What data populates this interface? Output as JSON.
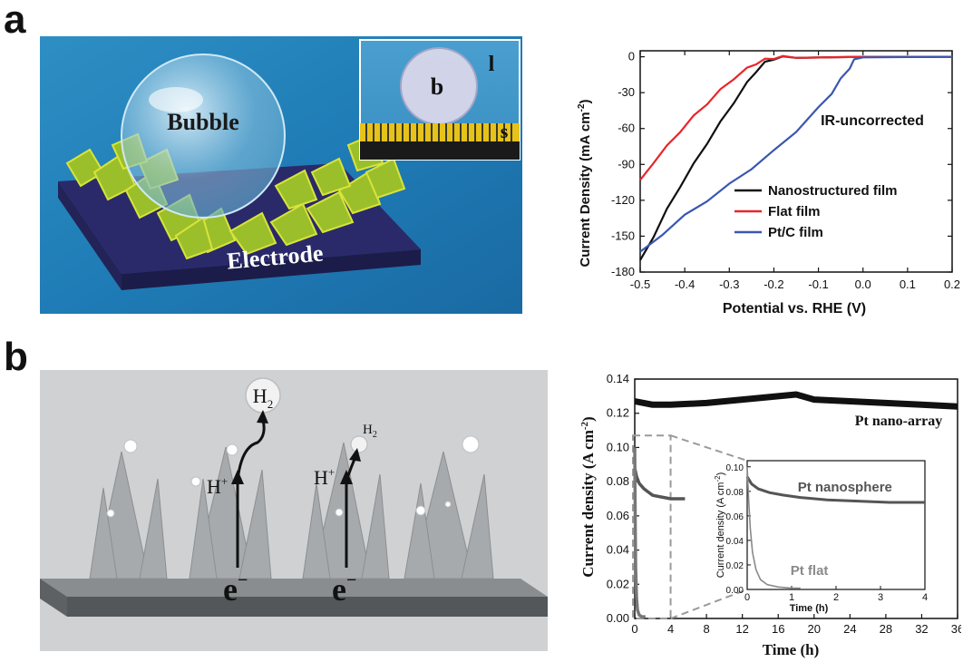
{
  "panels": {
    "a": {
      "letter": "a",
      "illustration": {
        "bubble_label": "Bubble",
        "electrode_label": "Electrode",
        "inset_b": "b",
        "inset_l": "l",
        "inset_s": "s"
      }
    },
    "b": {
      "letter": "b",
      "illustration": {
        "h2_big": "H",
        "h2_big_sub": "2",
        "h2_small": "H",
        "h2_small_sub": "2",
        "hplus": "H",
        "hplus_sup": "+",
        "e_minus": "e",
        "e_minus_sup": "−"
      }
    }
  },
  "colors": {
    "black": "#111111",
    "red": "#e8262a",
    "blue": "#3a57b0",
    "gray_trace": "#555555",
    "dash_gray": "#9a9a9a"
  },
  "chart_data": [
    {
      "type": "line",
      "title": "",
      "xlabel": "Potential vs. RHE (V)",
      "ylabel": "Current Density (mA cm",
      "ylabel_sup": "-2",
      "ylabel_end": ")",
      "xlim": [
        -0.5,
        0.2
      ],
      "ylim": [
        -180,
        5
      ],
      "xticks": [
        "-0.5",
        "-0.4",
        "-0.3",
        "-0.2",
        "-0.1",
        "0.0",
        "0.1",
        "0.2"
      ],
      "yticks": [
        "0",
        "-30",
        "-60",
        "-90",
        "-120",
        "-150",
        "-180"
      ],
      "annotation": "IR-uncorrected",
      "legend_position": "bottom-right",
      "series": [
        {
          "name": "Nanostructured film",
          "color": "#111111",
          "x": [
            -0.5,
            -0.47,
            -0.44,
            -0.41,
            -0.38,
            -0.35,
            -0.32,
            -0.29,
            -0.26,
            -0.24,
            -0.22,
            -0.2,
            -0.18,
            -0.15,
            0.0,
            0.2
          ],
          "y": [
            -170,
            -150,
            -128,
            -108,
            -90,
            -72,
            -55,
            -38,
            -22,
            -12,
            -5,
            -1.5,
            -0.5,
            0,
            0,
            0
          ]
        },
        {
          "name": "Flat film",
          "color": "#e8262a",
          "x": [
            -0.5,
            -0.47,
            -0.44,
            -0.41,
            -0.38,
            -0.35,
            -0.32,
            -0.29,
            -0.26,
            -0.24,
            -0.22,
            -0.2,
            -0.18,
            -0.15,
            0.0,
            0.2
          ],
          "y": [
            -103,
            -88,
            -75,
            -62,
            -50,
            -39,
            -28,
            -18,
            -10,
            -5.5,
            -2.5,
            -1,
            -0.3,
            0,
            0,
            0
          ]
        },
        {
          "name": "Pt/C film",
          "color": "#3a57b0",
          "x": [
            -0.5,
            -0.45,
            -0.4,
            -0.35,
            -0.3,
            -0.25,
            -0.2,
            -0.15,
            -0.1,
            -0.07,
            -0.05,
            -0.03,
            -0.02,
            0.0,
            0.2
          ],
          "y": [
            -163,
            -148,
            -133,
            -120,
            -107,
            -93,
            -79,
            -62,
            -43,
            -30,
            -19,
            -9,
            -3,
            -0.5,
            0
          ]
        }
      ]
    },
    {
      "type": "line",
      "title": "",
      "xlabel": "Time (h)",
      "ylabel": "Current density (A cm",
      "ylabel_sup": "-2",
      "ylabel_end": ")",
      "xlim": [
        0,
        36
      ],
      "ylim": [
        0,
        0.14
      ],
      "xticks": [
        "0",
        "4",
        "8",
        "12",
        "16",
        "20",
        "24",
        "28",
        "32",
        "36"
      ],
      "yticks": [
        "0.00",
        "0.02",
        "0.04",
        "0.06",
        "0.08",
        "0.10",
        "0.12",
        "0.14"
      ],
      "series": [
        {
          "name": "Pt nano-array",
          "color": "#111111",
          "x": [
            0,
            2,
            4,
            8,
            12,
            16,
            18,
            20,
            24,
            28,
            32,
            36
          ],
          "y": [
            0.127,
            0.125,
            0.125,
            0.126,
            0.128,
            0.13,
            0.131,
            0.128,
            0.127,
            0.126,
            0.125,
            0.124
          ]
        },
        {
          "name": "",
          "color": "#555555",
          "x": [
            0,
            0.2,
            0.5,
            1,
            1.5,
            2,
            3,
            4,
            5,
            5.6
          ],
          "y": [
            0.088,
            0.083,
            0.079,
            0.076,
            0.074,
            0.072,
            0.071,
            0.07,
            0.07,
            0.07
          ]
        },
        {
          "name": "",
          "color": "#777777",
          "x": [
            0,
            0.05,
            0.1,
            0.2,
            0.3,
            0.5,
            0.8,
            1.2
          ],
          "y": [
            0.1,
            0.06,
            0.03,
            0.012,
            0.005,
            0.002,
            0.001,
            0.001
          ]
        }
      ],
      "inset": {
        "xlabel": "Time (h)",
        "ylabel": "Current density (A cm",
        "ylabel_sup": "-2",
        "ylabel_end": ")",
        "xlim": [
          0,
          4
        ],
        "ylim": [
          0,
          0.105
        ],
        "xticks": [
          "0",
          "1",
          "2",
          "3",
          "4"
        ],
        "yticks": [
          "0.00",
          "0.02",
          "0.04",
          "0.06",
          "0.08",
          "0.10"
        ],
        "series": [
          {
            "name": "Pt nanosphere",
            "color": "#555555",
            "x": [
              0,
              0.1,
              0.25,
              0.5,
              0.8,
              1.2,
              1.8,
              2.5,
              3.2,
              4
            ],
            "y": [
              0.092,
              0.086,
              0.082,
              0.079,
              0.077,
              0.075,
              0.073,
              0.072,
              0.071,
              0.071
            ]
          },
          {
            "name": "Pt flat",
            "color": "#8a8a8a",
            "x": [
              0,
              0.03,
              0.07,
              0.12,
              0.2,
              0.3,
              0.45,
              0.7,
              1.0,
              1.2
            ],
            "y": [
              0.1,
              0.075,
              0.05,
              0.03,
              0.016,
              0.008,
              0.004,
              0.002,
              0.001,
              0.001
            ]
          }
        ]
      }
    }
  ]
}
